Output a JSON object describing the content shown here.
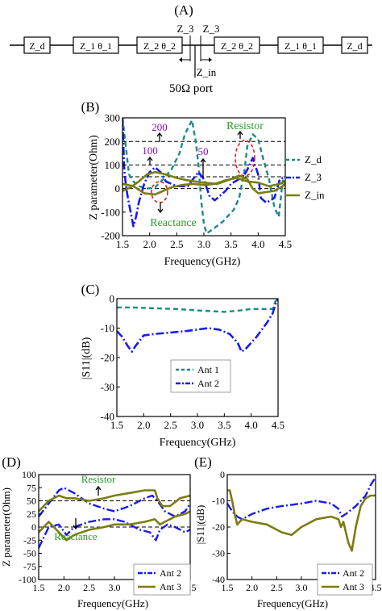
{
  "panel_a": {
    "label": "(A)",
    "blocks": [
      "Z_d",
      "Z_1 θ_1",
      "Z_2 θ_2",
      "Z_2 θ_2",
      "Z_1 θ_1",
      "Z_d"
    ],
    "z3_left": "Z_3",
    "z3_right": "Z_3",
    "zin": "Z_in",
    "port": "50Ω port"
  },
  "panel_b_text": {
    "label": "(B)",
    "ylabel": "Z parameter(Ohm)",
    "xlabel": "Frequency(GHz)",
    "ann_200": "200",
    "ann_100": "100",
    "ann_50": "50",
    "ann_resistor": "Resistor",
    "ann_reactance": "Reactance",
    "legend_zd": "Z_d",
    "legend_z3": "Z_3",
    "legend_zin": "Z_in"
  },
  "panel_c_text": {
    "label": "(C)",
    "ylabel": "|S11|(dB)",
    "xlabel": "Frequency(GHz)"
  },
  "panel_d_text": {
    "label": "(D)",
    "ylabel": "Z parameter(Ohm)",
    "xlabel": "Frequency(GHz)",
    "ann_resistor": "Resistor",
    "ann_reactance": "Reactance"
  },
  "panel_e_text": {
    "label": "(E)",
    "ylabel": "|S11|(dB)",
    "xlabel": "Frequency(GHz)"
  },
  "colors": {
    "teal": "#1a8a86",
    "blue": "#1a1aee",
    "olive": "#7b7d10",
    "green": "#24a02a",
    "purple": "#8a0bb0",
    "red": "#e01010"
  },
  "chart_data": [
    {
      "id": "B",
      "type": "line",
      "xlabel": "Frequency(GHz)",
      "ylabel": "Z parameter(Ohm)",
      "xlim": [
        1.5,
        4.5
      ],
      "ylim": [
        -200,
        300
      ],
      "xticks": [
        1.5,
        2.0,
        2.5,
        3.0,
        3.5,
        4.0,
        4.5
      ],
      "yticks": [
        -200,
        -100,
        0,
        100,
        200,
        300
      ],
      "ref_lines": [
        200,
        100,
        50,
        0
      ],
      "series": [
        {
          "name": "Z_d",
          "color": "#1a8a86",
          "dash": "6,4",
          "width": 2.4,
          "x": [
            1.5,
            1.62,
            1.7,
            1.8,
            1.95,
            2.1,
            2.25,
            2.4,
            2.55,
            2.65,
            2.78,
            2.85,
            2.9,
            2.95,
            3.0,
            3.05,
            3.15,
            3.35,
            3.55,
            3.65,
            3.75,
            3.8,
            3.9,
            4.0,
            4.1,
            4.2,
            4.3,
            4.38,
            4.45,
            4.5
          ],
          "y": [
            300,
            60,
            30,
            10,
            0,
            5,
            40,
            80,
            150,
            230,
            290,
            200,
            100,
            -50,
            -150,
            -190,
            -175,
            -140,
            -90,
            -40,
            80,
            180,
            230,
            210,
            120,
            40,
            -80,
            -120,
            30,
            50
          ]
        },
        {
          "name": "Z_3",
          "color": "#1a1aee",
          "dash": "10,3,2,3",
          "width": 2.6,
          "x": [
            1.5,
            1.53,
            1.56,
            1.6,
            1.65,
            1.7,
            1.75,
            1.8,
            1.9,
            2.0,
            2.1,
            2.2,
            2.3,
            2.5,
            2.7,
            2.8,
            2.9,
            3.0,
            3.1,
            3.2,
            3.4,
            3.5,
            3.65,
            3.75,
            3.8,
            3.9,
            4.0,
            4.05,
            4.15,
            4.3,
            4.4,
            4.5
          ],
          "y": [
            300,
            90,
            20,
            -40,
            -100,
            -160,
            -120,
            -60,
            20,
            70,
            90,
            70,
            30,
            10,
            10,
            40,
            70,
            40,
            -30,
            -50,
            -10,
            20,
            40,
            60,
            80,
            130,
            60,
            -40,
            -60,
            -40,
            40,
            50
          ]
        },
        {
          "name": "Z_in",
          "color": "#7b7d10",
          "dash": "",
          "width": 2.6,
          "x": [
            1.5,
            1.65,
            1.8,
            1.95,
            2.1,
            2.3,
            2.5,
            2.7,
            3.0,
            3.25,
            3.5,
            3.65,
            3.8,
            3.9,
            4.0,
            4.15,
            4.3,
            4.45,
            4.5
          ],
          "y": [
            -10,
            5,
            30,
            60,
            70,
            60,
            45,
            35,
            25,
            20,
            40,
            55,
            40,
            0,
            -20,
            -15,
            -10,
            10,
            20
          ]
        },
        {
          "name": "Z_in reactance",
          "color": "#7b7d10",
          "dash": "",
          "width": 2.6,
          "x": [
            1.5,
            1.7,
            1.9,
            2.1,
            2.25,
            2.4,
            2.6,
            2.8,
            3.0,
            3.2,
            3.4,
            3.6,
            3.8,
            4.0,
            4.2,
            4.4,
            4.5
          ],
          "y": [
            20,
            10,
            -20,
            -25,
            -10,
            5,
            15,
            20,
            15,
            20,
            35,
            45,
            30,
            25,
            10,
            20,
            30
          ]
        }
      ]
    },
    {
      "id": "C",
      "type": "line",
      "xlabel": "Frequency(GHz)",
      "ylabel": "|S11|(dB)",
      "xlim": [
        1.5,
        4.5
      ],
      "ylim": [
        -40,
        0
      ],
      "xticks": [
        1.5,
        2.0,
        2.5,
        3.0,
        3.5,
        4.0,
        4.5
      ],
      "yticks": [
        -40,
        -30,
        -20,
        -10,
        0
      ],
      "legend_position": "center",
      "series": [
        {
          "name": "Ant 1",
          "color": "#1a8a86",
          "dash": "6,4",
          "width": 2.4,
          "x": [
            1.5,
            1.8,
            2.2,
            2.6,
            3.0,
            3.5,
            3.8,
            4.0,
            4.3,
            4.4,
            4.45,
            4.5
          ],
          "y": [
            -3.0,
            -3.0,
            -3.3,
            -3.5,
            -4.0,
            -4.5,
            -4.0,
            -3.5,
            -3.5,
            -3.5,
            -1.0,
            0
          ]
        },
        {
          "name": "Ant 2",
          "color": "#1a1aee",
          "dash": "10,3,2,3",
          "width": 2.6,
          "x": [
            1.5,
            1.6,
            1.7,
            1.78,
            1.85,
            2.0,
            2.2,
            2.5,
            2.8,
            3.0,
            3.2,
            3.4,
            3.6,
            3.75,
            3.82,
            3.9,
            4.1,
            4.3,
            4.4,
            4.45,
            4.5
          ],
          "y": [
            -11,
            -13,
            -16,
            -18,
            -16,
            -12.5,
            -12,
            -11.5,
            -11,
            -10.5,
            -10,
            -10.5,
            -12,
            -15,
            -18,
            -17,
            -13,
            -8,
            -5,
            -2,
            0
          ]
        }
      ]
    },
    {
      "id": "D",
      "type": "line",
      "xlabel": "Frequency(GHz)",
      "ylabel": "Z parameter(Ohm)",
      "xlim": [
        1.5,
        4.5
      ],
      "ylim": [
        -100,
        100
      ],
      "xticks": [
        1.5,
        2.0,
        2.5,
        3.0,
        3.5,
        4.0,
        4.5
      ],
      "yticks": [
        -100,
        -75,
        -50,
        -25,
        0,
        25,
        50,
        75,
        100
      ],
      "ref_lines": [
        50,
        0
      ],
      "legend_position": "bottom-right",
      "series": [
        {
          "name": "Ant 2",
          "color": "#1a1aee",
          "dash": "10,3,2,3",
          "width": 2.4,
          "x": [
            1.5,
            1.7,
            1.9,
            2.0,
            2.2,
            2.5,
            2.8,
            3.0,
            3.3,
            3.6,
            3.75,
            3.85,
            4.0,
            4.2,
            4.4,
            4.5
          ],
          "y": [
            20,
            45,
            70,
            75,
            65,
            45,
            35,
            30,
            40,
            55,
            60,
            50,
            30,
            20,
            30,
            45
          ]
        },
        {
          "name": "Ant 2 reactance",
          "color": "#1a1aee",
          "dash": "10,3,2,3",
          "width": 2.4,
          "x": [
            1.5,
            1.7,
            1.9,
            2.05,
            2.2,
            2.5,
            2.8,
            3.0,
            3.2,
            3.5,
            3.7,
            3.82,
            3.9,
            4.05,
            4.2,
            4.4,
            4.5
          ],
          "y": [
            -40,
            0,
            5,
            -15,
            0,
            10,
            15,
            15,
            10,
            -5,
            -10,
            -25,
            -5,
            5,
            0,
            -10,
            -5
          ]
        },
        {
          "name": "Ant 3",
          "color": "#7b7d10",
          "dash": "",
          "width": 2.6,
          "x": [
            1.5,
            1.7,
            1.9,
            2.05,
            2.2,
            2.5,
            2.8,
            3.0,
            3.3,
            3.6,
            3.8,
            3.85,
            3.95,
            4.1,
            4.3,
            4.5
          ],
          "y": [
            30,
            50,
            60,
            55,
            55,
            50,
            55,
            60,
            65,
            70,
            70,
            55,
            40,
            40,
            55,
            60
          ]
        },
        {
          "name": "Ant 3 reactance",
          "color": "#7b7d10",
          "dash": "",
          "width": 2.6,
          "x": [
            1.5,
            1.7,
            1.9,
            2.05,
            2.2,
            2.5,
            2.8,
            3.0,
            3.3,
            3.6,
            3.8,
            3.9,
            4.0,
            4.2,
            4.4,
            4.5
          ],
          "y": [
            -10,
            10,
            -10,
            -25,
            -15,
            -5,
            0,
            5,
            5,
            10,
            15,
            5,
            10,
            20,
            25,
            30
          ]
        }
      ]
    },
    {
      "id": "E",
      "type": "line",
      "xlabel": "Frequency(GHz)",
      "ylabel": "|S11|(dB)",
      "xlim": [
        1.5,
        4.5
      ],
      "ylim": [
        -40,
        0
      ],
      "xticks": [
        1.5,
        2.0,
        2.5,
        3.0,
        3.5,
        4.0,
        4.5
      ],
      "yticks": [
        -40,
        -30,
        -20,
        -10,
        0
      ],
      "legend_position": "bottom-right",
      "series": [
        {
          "name": "Ant 2",
          "color": "#1a1aee",
          "dash": "10,3,2,3",
          "width": 2.4,
          "x": [
            1.5,
            1.6,
            1.7,
            1.8,
            2.0,
            2.3,
            2.6,
            3.0,
            3.3,
            3.6,
            3.75,
            3.82,
            3.9,
            4.1,
            4.3,
            4.4,
            4.5
          ],
          "y": [
            -11,
            -14,
            -16,
            -17,
            -15,
            -13,
            -12,
            -11,
            -10,
            -11,
            -13,
            -16,
            -15,
            -12,
            -8,
            -4,
            -1
          ]
        },
        {
          "name": "Ant 3",
          "color": "#7b7d10",
          "dash": "",
          "width": 2.6,
          "x": [
            1.5,
            1.55,
            1.6,
            1.65,
            1.7,
            1.8,
            2.0,
            2.3,
            2.6,
            2.8,
            3.0,
            3.3,
            3.6,
            3.75,
            3.8,
            3.85,
            3.95,
            4.02,
            4.1,
            4.2,
            4.3,
            4.4,
            4.5
          ],
          "y": [
            -6,
            -6,
            -10,
            -15,
            -19,
            -17,
            -18,
            -19,
            -22,
            -23,
            -20,
            -17,
            -16,
            -17,
            -20,
            -18,
            -26,
            -29,
            -20,
            -12,
            -9,
            -8,
            -8
          ]
        }
      ]
    }
  ]
}
